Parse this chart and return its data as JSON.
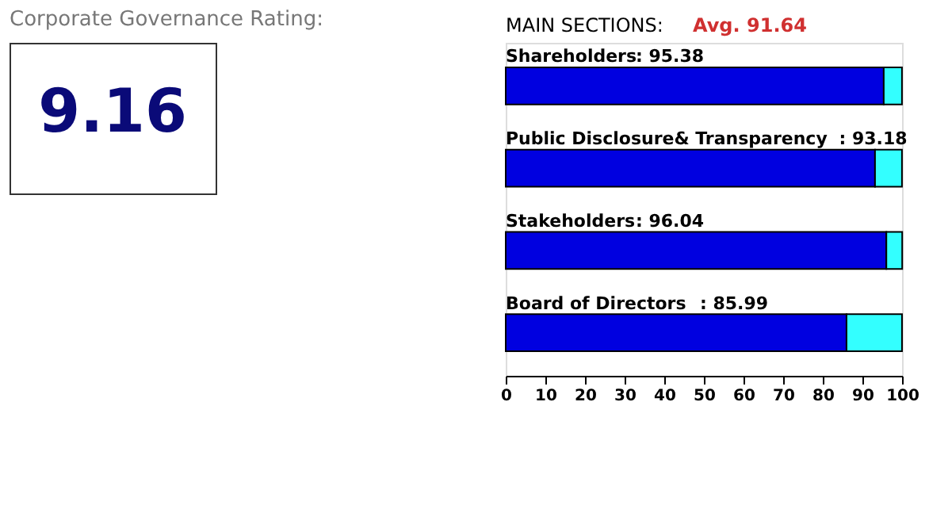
{
  "chart_data": [
    {
      "type": "other",
      "title": "Corporate Governance Rating:",
      "annotations": [
        "9.16"
      ]
    },
    {
      "type": "bar",
      "title": "MAIN SECTIONS:",
      "annotations": [
        "Avg. 91.64"
      ],
      "orientation": "horizontal",
      "stacked": true,
      "categories": [
        "Shareholders",
        "Public Disclosure& Transparency",
        "Stakeholders",
        "Board of Directors"
      ],
      "series": [
        {
          "color": "#0000e0",
          "values": [
            95.38,
            93.18,
            96.04,
            85.99
          ],
          "value_labels": [
            ": 95.38",
            ": 93.18",
            ": 96.04",
            ": 85.99"
          ]
        },
        {
          "color": "#33ffff",
          "values": [
            4.6,
            6.8,
            4.0,
            14.0
          ]
        }
      ],
      "xlim": [
        0,
        100
      ],
      "xticks": [
        0,
        10,
        20,
        30,
        40,
        50,
        60,
        70,
        80,
        90,
        100
      ]
    }
  ]
}
